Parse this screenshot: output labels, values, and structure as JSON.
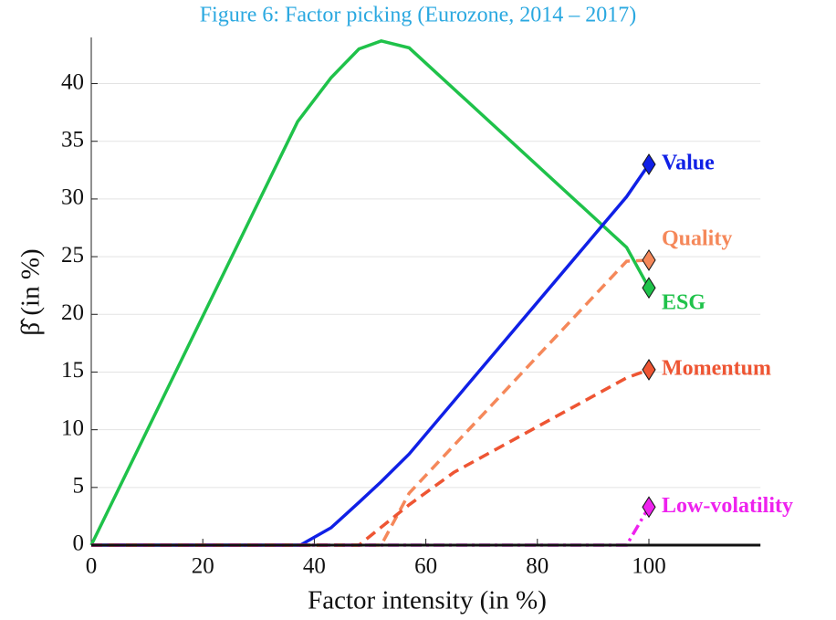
{
  "chart_data": {
    "type": "line",
    "title": "Figure 6: Factor picking (Eurozone, 2014 – 2017)",
    "xlabel": "Factor intensity (in %)",
    "ylabel": "β̂ (in %)",
    "xlim": [
      0,
      120
    ],
    "ylim": [
      0,
      44
    ],
    "xticks": [
      0,
      20,
      40,
      60,
      80,
      100
    ],
    "yticks": [
      0,
      5,
      10,
      15,
      20,
      25,
      30,
      35,
      40
    ],
    "grid": "y",
    "series": [
      {
        "name": "ESG",
        "color": "#1fc24a",
        "linestyle": "solid",
        "x": [
          0,
          37,
          43,
          48,
          52,
          57,
          96,
          100
        ],
        "values": [
          0,
          36.7,
          40.5,
          43,
          43.7,
          43.1,
          25.8,
          22.3
        ]
      },
      {
        "name": "Value",
        "color": "#1020e6",
        "linestyle": "solid",
        "x": [
          0,
          37.5,
          43,
          48,
          52,
          57,
          96,
          100
        ],
        "values": [
          0,
          0,
          1.5,
          3.7,
          5.5,
          7.9,
          30.2,
          33
        ]
      },
      {
        "name": "Quality",
        "color": "#f5885a",
        "linestyle": "dashed",
        "x": [
          0,
          52,
          57,
          96,
          100
        ],
        "values": [
          0,
          0,
          4.5,
          24.6,
          24.7
        ]
      },
      {
        "name": "Momentum",
        "color": "#ee5533",
        "linestyle": "dashed",
        "x": [
          0,
          48,
          57,
          65,
          96,
          100
        ],
        "values": [
          0,
          0,
          3.5,
          6.3,
          14.5,
          15.2
        ]
      },
      {
        "name": "Low-volatility",
        "color": "#ee22ee",
        "linestyle": "dashdot",
        "x": [
          0,
          96,
          100
        ],
        "values": [
          0,
          0,
          3.3
        ]
      }
    ]
  }
}
